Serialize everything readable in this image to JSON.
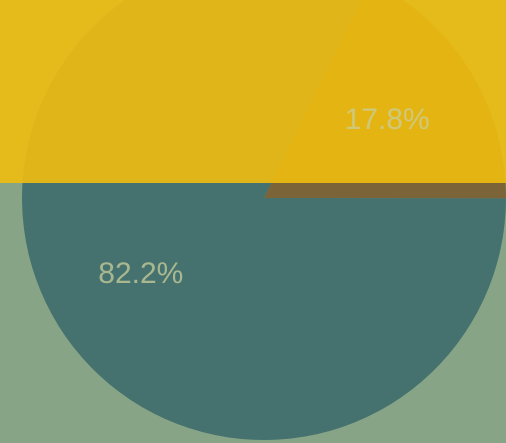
{
  "chart_data": {
    "type": "pie",
    "values": [
      17.8,
      82.2
    ],
    "value_labels": [
      "17.8%",
      "82.2%"
    ],
    "colors": [
      "#7a6438",
      "#45716e"
    ]
  }
}
